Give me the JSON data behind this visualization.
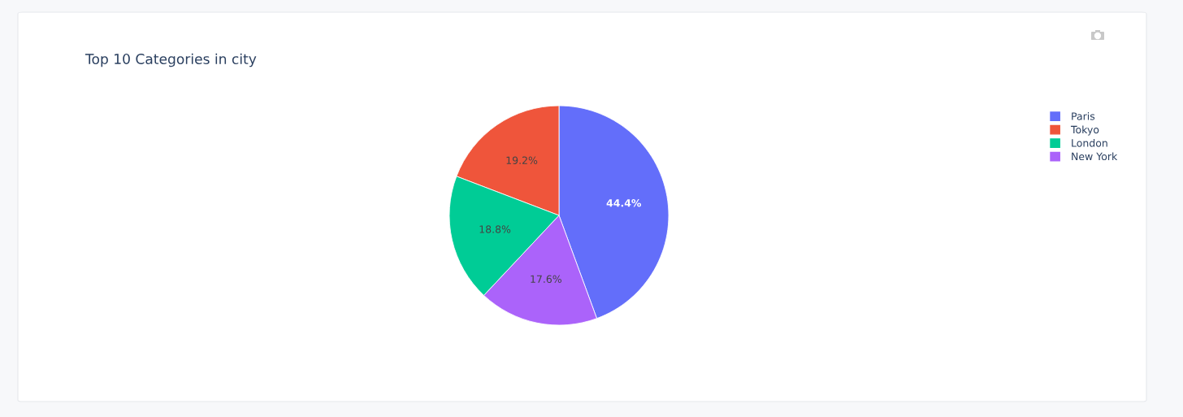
{
  "chart_data": {
    "type": "pie",
    "title": "Top 10 Categories in city",
    "categories": [
      "Paris",
      "Tokyo",
      "London",
      "New York"
    ],
    "values": [
      44.4,
      19.2,
      18.8,
      17.6
    ],
    "colors": [
      "#636efa",
      "#ef553b",
      "#00cc96",
      "#ab63fa"
    ],
    "value_labels": [
      "44.4%",
      "19.2%",
      "18.8%",
      "17.6%"
    ],
    "legend": "right"
  }
}
